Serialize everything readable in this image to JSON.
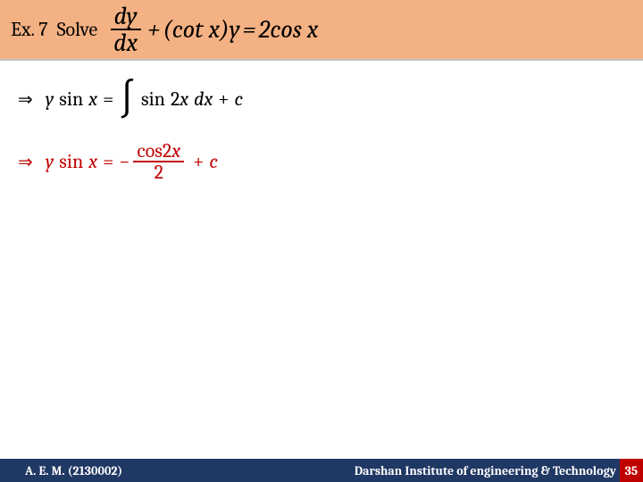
{
  "header": {
    "ex_label": "Ex. 7",
    "solve_label": "Solve",
    "equation": {
      "frac_num": "dy",
      "frac_den": "dx",
      "plus": "+",
      "open_paren": "(",
      "cot": "cot",
      "x1": "x",
      "close_paren": ")",
      "y": "y",
      "equals": "=",
      "two": "2",
      "cos": "cos",
      "x2": "x"
    }
  },
  "line1": {
    "arrow": "⇒",
    "y": "y",
    "sin": "sin",
    "x1": "x",
    "eq": "=",
    "sin2": "sin",
    "two": "2",
    "x2": "x",
    "dx": "dx",
    "plus": "+",
    "c": "c"
  },
  "line2": {
    "arrow": "⇒",
    "y": "y",
    "sin": "sin",
    "x1": "x",
    "eq": "=",
    "minus": "−",
    "frac_num_cos": "cos",
    "frac_num_two": "2",
    "frac_num_x": "x",
    "frac_den": "2",
    "plus": "+",
    "c": "c"
  },
  "footer": {
    "left": "A. E. M. (2130002)",
    "right": "Darshan Institute of engineering & Technology",
    "page": "35"
  },
  "colors": {
    "header_bg": "#f4b183",
    "footer_bg": "#203864",
    "accent_red": "#c00000",
    "text_black": "#000000",
    "text_white": "#ffffff"
  }
}
